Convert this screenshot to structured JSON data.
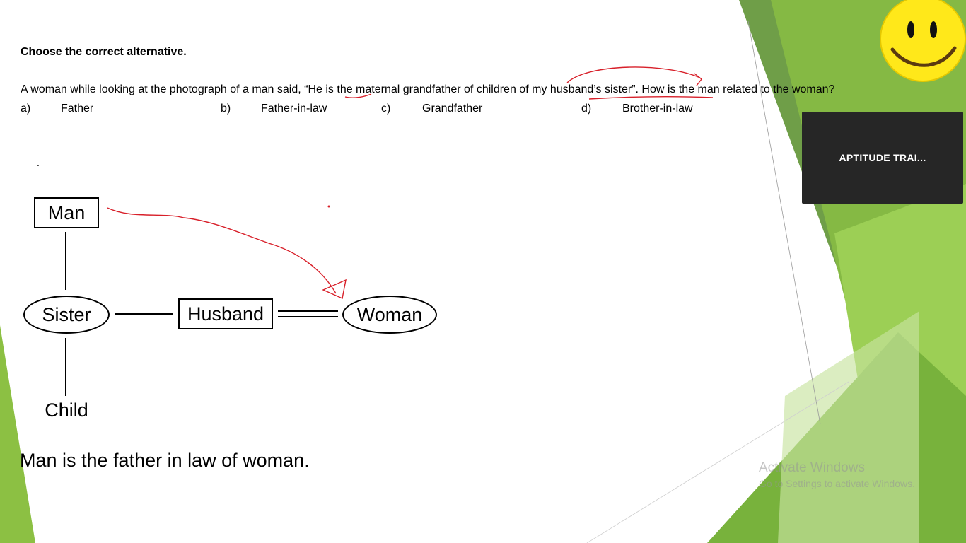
{
  "slide": {
    "heading": "Choose the correct alternative.",
    "question": "A woman while looking at the photograph of a man said, “He is the maternal grandfather of children of my husband’s sister”. How is the man related to the woman?",
    "options": [
      {
        "letter": "a)",
        "text": "Father"
      },
      {
        "letter": "b)",
        "text": "Father-in-law"
      },
      {
        "letter": "c)",
        "text": "Grandfather"
      },
      {
        "letter": "d)",
        "text": "Brother-in-law"
      }
    ],
    "stray_dot": ".",
    "diagram": {
      "man": "Man",
      "sister": "Sister",
      "husband": "Husband",
      "woman": "Woman",
      "child": "Child"
    },
    "conclusion": "Man is the father in law of woman."
  },
  "video_panel": {
    "label": "APTITUDE TRAI..."
  },
  "watermark": {
    "title": "Activate Windows",
    "subtitle": "Go to Settings to activate Windows."
  },
  "colors": {
    "annotation": "#d8202a",
    "green_dark": "#4f8a2b",
    "green_mid": "#7ab648",
    "green_light": "#a9d26a",
    "panel_bg": "#262626",
    "emoji_yellow": "#ffe81a"
  },
  "icons": {
    "emoji": "smiley-face-icon"
  }
}
